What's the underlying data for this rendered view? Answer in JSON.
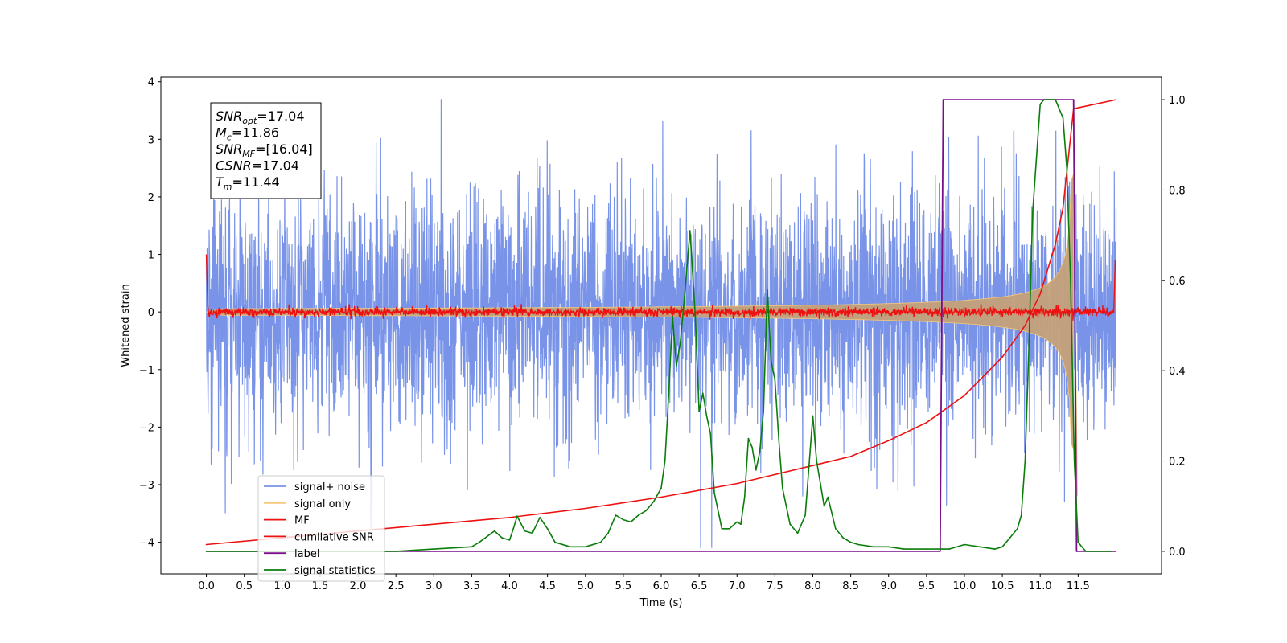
{
  "chart_data": {
    "type": "line",
    "xlabel": "Time (s)",
    "ylabel": "Whitened strain",
    "xlim": [
      -0.6,
      12.6
    ],
    "ylim": [
      -4.55,
      4.08
    ],
    "y2lim": [
      -0.05,
      1.05
    ],
    "xticks": [
      "0.0",
      "0.5",
      "1.0",
      "1.5",
      "2.0",
      "2.5",
      "3.0",
      "3.5",
      "4.0",
      "4.5",
      "5.0",
      "5.5",
      "6.0",
      "6.5",
      "7.0",
      "7.5",
      "8.0",
      "8.5",
      "9.0",
      "9.5",
      "10.0",
      "10.5",
      "11.0",
      "11.5"
    ],
    "yticks": [
      "4",
      "3",
      "2",
      "1",
      "0",
      "−1",
      "−2",
      "−3",
      "−4"
    ],
    "y2ticks": [
      "0.0",
      "0.2",
      "0.4",
      "0.6",
      "0.8",
      "1.0"
    ],
    "info_box": [
      {
        "sym": "SNR",
        "sub": "opt",
        "val": "=17.04"
      },
      {
        "sym": "M",
        "sub": "c",
        "val": "=11.86"
      },
      {
        "sym": "SNR",
        "sub": "MF",
        "val": "=[16.04]"
      },
      {
        "sym": "CSNR",
        "sub": "",
        "val": "=17.04"
      },
      {
        "sym": "T",
        "sub": "m",
        "val": "=11.44"
      }
    ],
    "legend": {
      "position": "lower-left",
      "entries": [
        {
          "name": "signal+ noise",
          "color": "#7893e8"
        },
        {
          "name": "signal only",
          "color": "#f8c978"
        },
        {
          "name": "MF",
          "color": "#ee1111"
        },
        {
          "name": "cumilative SNR",
          "color": "#ee1111"
        },
        {
          "name": "label",
          "color": "#7a0f8a"
        },
        {
          "name": "signal statistics",
          "color": "#0a7d0a"
        }
      ]
    },
    "series": {
      "signal_noise": {
        "noise_sigma": 1.0,
        "x_range": [
          0.0,
          12.0
        ]
      },
      "signal_only": {
        "merger_time": 11.44,
        "peak_amplitude": 2.4
      },
      "mf": {
        "noise_sigma": 0.035
      },
      "cumulative_snr": {
        "axis": "right",
        "x": [
          0.0,
          1.0,
          2.0,
          3.0,
          4.0,
          5.0,
          6.0,
          7.0,
          7.5,
          8.0,
          8.5,
          9.0,
          9.5,
          10.0,
          10.5,
          10.8,
          11.0,
          11.2,
          11.3,
          11.44,
          12.0
        ],
        "y": [
          0.015,
          0.03,
          0.045,
          0.06,
          0.075,
          0.095,
          0.12,
          0.15,
          0.17,
          0.19,
          0.21,
          0.245,
          0.285,
          0.345,
          0.43,
          0.5,
          0.57,
          0.68,
          0.76,
          0.98,
          1.0
        ]
      },
      "label": {
        "axis": "right",
        "x": [
          0.0,
          9.68,
          9.72,
          11.44,
          11.48,
          12.0
        ],
        "y": [
          0.0,
          0.0,
          1.0,
          1.0,
          0.0,
          0.0
        ]
      },
      "signal_statistics": {
        "axis": "right",
        "x": [
          0.0,
          0.5,
          1.0,
          1.5,
          2.0,
          2.5,
          3.0,
          3.5,
          3.6,
          3.8,
          3.9,
          4.0,
          4.05,
          4.1,
          4.2,
          4.3,
          4.4,
          4.5,
          4.6,
          4.8,
          5.0,
          5.2,
          5.3,
          5.4,
          5.5,
          5.6,
          5.7,
          5.8,
          5.9,
          6.0,
          6.05,
          6.1,
          6.15,
          6.2,
          6.25,
          6.3,
          6.38,
          6.45,
          6.5,
          6.55,
          6.6,
          6.65,
          6.7,
          6.8,
          6.9,
          7.0,
          7.05,
          7.1,
          7.15,
          7.2,
          7.25,
          7.3,
          7.35,
          7.4,
          7.45,
          7.5,
          7.55,
          7.6,
          7.65,
          7.7,
          7.8,
          7.9,
          8.0,
          8.05,
          8.1,
          8.15,
          8.2,
          8.3,
          8.4,
          8.5,
          8.6,
          8.8,
          9.0,
          9.2,
          9.5,
          9.8,
          10.0,
          10.2,
          10.4,
          10.5,
          10.6,
          10.7,
          10.75,
          10.8,
          10.85,
          10.9,
          10.95,
          11.0,
          11.05,
          11.1,
          11.2,
          11.3,
          11.35,
          11.4,
          11.45,
          11.5,
          11.6,
          11.7,
          11.8,
          11.9,
          11.95
        ],
        "y": [
          0.0,
          0.0,
          0.0,
          0.0,
          0.0,
          0.0,
          0.005,
          0.01,
          0.02,
          0.045,
          0.03,
          0.025,
          0.05,
          0.078,
          0.045,
          0.04,
          0.075,
          0.05,
          0.02,
          0.01,
          0.01,
          0.02,
          0.04,
          0.08,
          0.07,
          0.065,
          0.08,
          0.09,
          0.11,
          0.14,
          0.2,
          0.35,
          0.52,
          0.41,
          0.46,
          0.55,
          0.71,
          0.52,
          0.31,
          0.35,
          0.3,
          0.26,
          0.13,
          0.05,
          0.05,
          0.065,
          0.06,
          0.12,
          0.25,
          0.23,
          0.18,
          0.22,
          0.31,
          0.58,
          0.42,
          0.38,
          0.25,
          0.14,
          0.1,
          0.06,
          0.04,
          0.08,
          0.3,
          0.2,
          0.15,
          0.1,
          0.12,
          0.05,
          0.03,
          0.02,
          0.015,
          0.01,
          0.01,
          0.005,
          0.005,
          0.005,
          0.015,
          0.01,
          0.005,
          0.01,
          0.03,
          0.05,
          0.08,
          0.2,
          0.45,
          0.75,
          0.87,
          0.99,
          1.0,
          1.0,
          1.0,
          0.96,
          0.85,
          0.6,
          0.2,
          0.02,
          0.0,
          0.0,
          0.0,
          0.0,
          0.0
        ]
      }
    }
  }
}
